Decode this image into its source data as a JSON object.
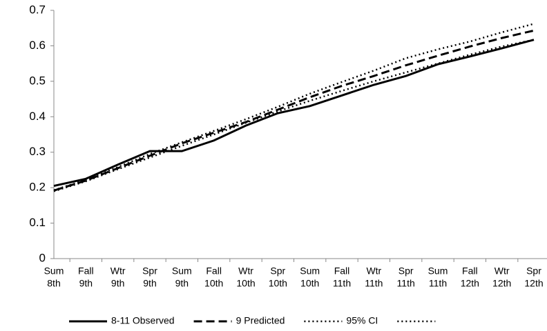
{
  "chart_data": {
    "type": "line",
    "categories": [
      [
        "Sum",
        "8th"
      ],
      [
        "Fall",
        "9th"
      ],
      [
        "Wtr",
        "9th"
      ],
      [
        "Spr",
        "9th"
      ],
      [
        "Sum",
        "9th"
      ],
      [
        "Fall",
        "10th"
      ],
      [
        "Wtr",
        "10th"
      ],
      [
        "Spr",
        "10th"
      ],
      [
        "Sum",
        "10th"
      ],
      [
        "Fall",
        "11th"
      ],
      [
        "Wtr",
        "11th"
      ],
      [
        "Spr",
        "11th"
      ],
      [
        "Sum",
        "11th"
      ],
      [
        "Fall",
        "12th"
      ],
      [
        "Wtr",
        "12th"
      ],
      [
        "Spr",
        "12th"
      ]
    ],
    "series": [
      {
        "name": "8-11 Observed",
        "color": "#000000",
        "dash": "solid",
        "width": 3,
        "values": [
          0.205,
          0.225,
          0.265,
          0.303,
          0.303,
          0.333,
          0.375,
          0.41,
          0.43,
          0.46,
          0.49,
          0.515,
          0.548,
          0.57,
          0.593,
          0.617
        ]
      },
      {
        "name": "9 Predicted",
        "color": "#000000",
        "dash": "dashed",
        "width": 3,
        "values": [
          0.192,
          0.22,
          0.255,
          0.29,
          0.325,
          0.355,
          0.385,
          0.42,
          0.455,
          0.487,
          0.515,
          0.545,
          0.572,
          0.598,
          0.622,
          0.643
        ]
      },
      {
        "name": "95% CI",
        "color": "#000000",
        "dash": "dotted",
        "width": 2.5,
        "values": [
          0.193,
          0.222,
          0.258,
          0.295,
          0.328,
          0.36,
          0.393,
          0.428,
          0.465,
          0.498,
          0.53,
          0.565,
          0.59,
          0.612,
          0.638,
          0.662
        ]
      },
      {
        "color": "#000000",
        "dash": "dotted",
        "width": 2.5,
        "values": [
          0.19,
          0.218,
          0.252,
          0.285,
          0.318,
          0.35,
          0.383,
          0.415,
          0.445,
          0.473,
          0.5,
          0.525,
          0.55,
          0.575,
          0.598,
          0.617
        ]
      }
    ],
    "ylim": [
      0,
      0.7
    ],
    "yticks": [
      0,
      0.1,
      0.2,
      0.3,
      0.4,
      0.5,
      0.6,
      0.7
    ],
    "grid": false,
    "legend": "bottom"
  }
}
